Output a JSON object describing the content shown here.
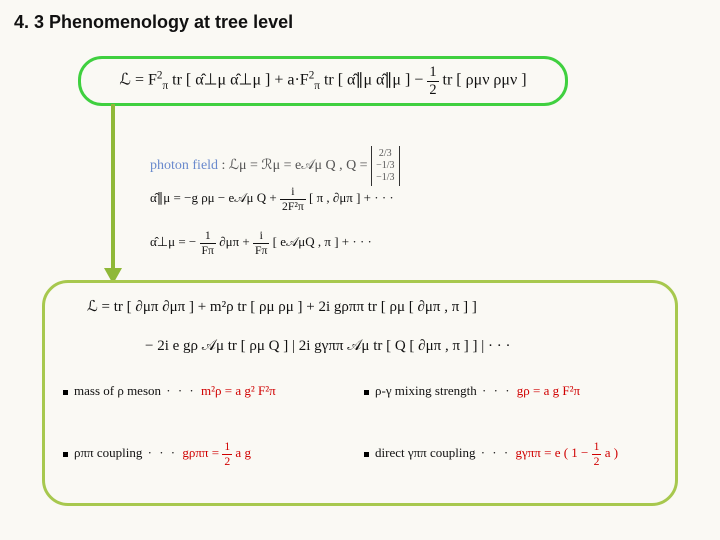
{
  "title": "4. 3 Phenomenology at tree level",
  "main_lagrangian": {
    "prefix": "ℒ = F",
    "pi_sq": "π",
    "tr1": " tr [ α̂⊥μ α̂⊥μ ] + a·F",
    "tr2": " tr [ α̂∥μ α̂∥μ ] − ",
    "half_num": "1",
    "half_den": "2",
    "tr3": " tr [ ρμν ρμν ]"
  },
  "photon": {
    "label": "photon field",
    "colon": " :  ℒμ = ℛμ = e𝒜μ Q ,  Q = ",
    "m1": "2/3",
    "m2": "−1/3",
    "m3": "−1/3"
  },
  "alpha_par": {
    "lhs": "α̂∥μ = −g ρμ − e𝒜μ Q + ",
    "frac_num": "i",
    "frac_den": "2F²π",
    "rhs": " [ π , ∂μπ ] + · · ·"
  },
  "alpha_perp": {
    "lhs": "α̂⊥μ = − ",
    "frac1_num": "1",
    "frac1_den": "Fπ",
    "mid": " ∂μπ + ",
    "frac2_num": "i",
    "frac2_den": "Fπ",
    "rhs": " [ e𝒜μQ , π ] + · · ·"
  },
  "expanded": {
    "line1": "ℒ = tr [ ∂μπ ∂μπ ] + m²ρ tr [ ρμ ρμ ] + 2i gρππ tr [ ρμ [ ∂μπ , π ] ]",
    "line2": "− 2i e gρ 𝒜μ tr [ ρμ Q ]  |  2i gγππ 𝒜μ tr [ Q [ ∂μπ , π ] ]  |  · · ·"
  },
  "cells": {
    "c1_label": "mass of ρ meson",
    "c1_dots": " · · ·  ",
    "c1_lhs": "m²ρ",
    "c1_eq": " = ",
    "c1_rhs": "a g² F²π",
    "c2_label": "ρ-γ mixing strength",
    "c2_dots": " · · ·  ",
    "c2_lhs": "gρ",
    "c2_eq": " = ",
    "c2_rhs": "a g F²π",
    "c3_label": "ρππ coupling",
    "c3_dots": " · · ·  ",
    "c3_lhs": "gρππ",
    "c3_eq": " = ",
    "c3_frac_num": "1",
    "c3_frac_den": "2",
    "c3_rhs": " a g",
    "c4_label": "direct γππ coupling",
    "c4_dots": " · · ·  ",
    "c4_lhs": "gγππ",
    "c4_eq": " = ",
    "c4_rhs_pre": "e ( 1 − ",
    "c4_frac_num": "1",
    "c4_frac_den": "2",
    "c4_rhs_post": " a )"
  },
  "colors": {
    "box1_border": "#3fd03f",
    "box2_border": "#a7c84e",
    "arrow": "#8fb838",
    "red": "#d00000",
    "bg": "#faf9f4"
  }
}
